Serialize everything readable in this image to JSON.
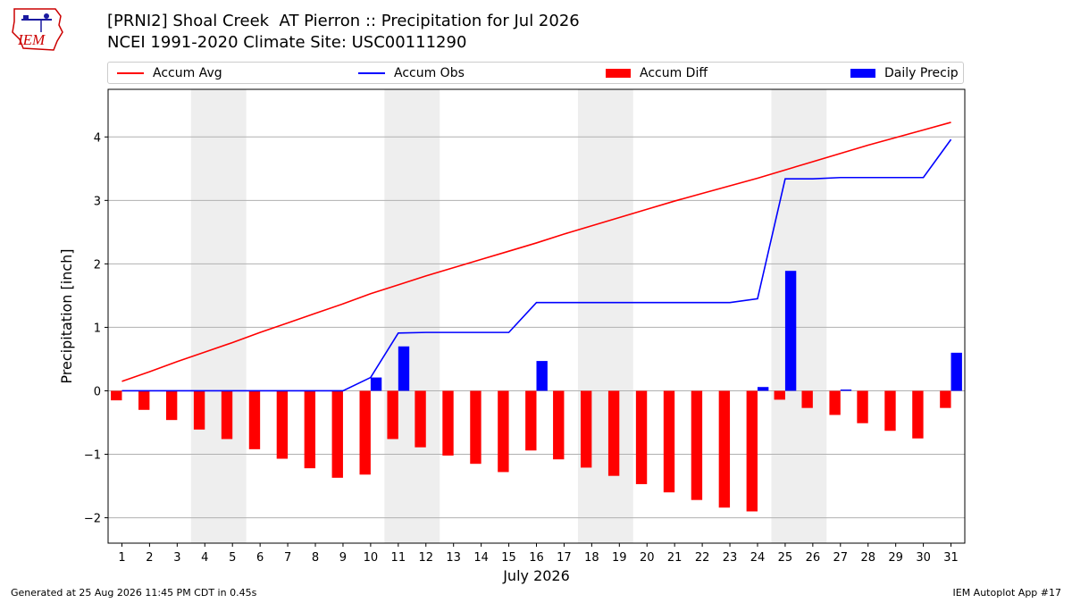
{
  "logo": {
    "text": "IEM",
    "color": "#cc0000"
  },
  "header": {
    "title_line1": "[PRNI2] Shoal Creek  AT Pierron :: Precipitation for Jul 2026",
    "title_line2": "NCEI 1991-2020 Climate Site: USC00111290"
  },
  "legend": [
    {
      "label": "Accum Avg",
      "kind": "line",
      "color": "#ff0000"
    },
    {
      "label": "Accum Obs",
      "kind": "line",
      "color": "#0000ff"
    },
    {
      "label": "Accum Diff",
      "kind": "bar",
      "color": "#ff0000"
    },
    {
      "label": "Daily Precip",
      "kind": "bar",
      "color": "#0000ff"
    }
  ],
  "footer": {
    "left": "Generated at 25 Aug 2026 11:45 PM CDT in 0.45s",
    "right": "IEM Autoplot App #17"
  },
  "chart_data": {
    "type": "bar",
    "xlabel": "July 2026",
    "ylabel": "Precipitation [inch]",
    "ylim": [
      -2.4,
      4.75
    ],
    "yticks": [
      -2,
      -1,
      0,
      1,
      2,
      3,
      4
    ],
    "ytick_labels": [
      "−2",
      "−1",
      "0",
      "1",
      "2",
      "3",
      "4"
    ],
    "x": [
      1,
      2,
      3,
      4,
      5,
      6,
      7,
      8,
      9,
      10,
      11,
      12,
      13,
      14,
      15,
      16,
      17,
      18,
      19,
      20,
      21,
      22,
      23,
      24,
      25,
      26,
      27,
      28,
      29,
      30,
      31
    ],
    "weekend_bands": [
      [
        3.5,
        5.5
      ],
      [
        10.5,
        12.5
      ],
      [
        17.5,
        19.5
      ],
      [
        24.5,
        26.5
      ]
    ],
    "grid": "horizontal",
    "series": [
      {
        "name": "Accum Avg",
        "type": "line",
        "color": "#ff0000",
        "values": [
          0.15,
          0.3,
          0.46,
          0.61,
          0.76,
          0.92,
          1.07,
          1.22,
          1.37,
          1.53,
          1.67,
          1.81,
          1.94,
          2.07,
          2.2,
          2.33,
          2.47,
          2.6,
          2.73,
          2.86,
          2.99,
          3.11,
          3.23,
          3.35,
          3.48,
          3.61,
          3.74,
          3.87,
          3.99,
          4.11,
          4.23
        ]
      },
      {
        "name": "Accum Obs",
        "type": "line",
        "color": "#0000ff",
        "values": [
          0,
          0,
          0,
          0,
          0,
          0,
          0,
          0,
          0,
          0.21,
          0.91,
          0.92,
          0.92,
          0.92,
          0.92,
          1.39,
          1.39,
          1.39,
          1.39,
          1.39,
          1.39,
          1.39,
          1.39,
          1.45,
          3.34,
          3.34,
          3.36,
          3.36,
          3.36,
          3.36,
          3.96
        ]
      },
      {
        "name": "Accum Diff",
        "type": "bar",
        "color": "#ff0000",
        "values": [
          -0.15,
          -0.3,
          -0.46,
          -0.61,
          -0.76,
          -0.92,
          -1.07,
          -1.22,
          -1.37,
          -1.32,
          -0.76,
          -0.89,
          -1.02,
          -1.15,
          -1.28,
          -0.94,
          -1.08,
          -1.21,
          -1.34,
          -1.47,
          -1.6,
          -1.72,
          -1.84,
          -1.9,
          -0.14,
          -0.27,
          -0.38,
          -0.51,
          -0.63,
          -0.75,
          -0.27
        ]
      },
      {
        "name": "Daily Precip",
        "type": "bar",
        "color": "#0000ff",
        "values": [
          0,
          0,
          0,
          0,
          0,
          0,
          0,
          0,
          0,
          0.21,
          0.7,
          0,
          0,
          0,
          0,
          0.47,
          0,
          0,
          0,
          0,
          0,
          0,
          0,
          0.06,
          1.89,
          0,
          0.02,
          0,
          0,
          0,
          0.6
        ]
      }
    ]
  }
}
